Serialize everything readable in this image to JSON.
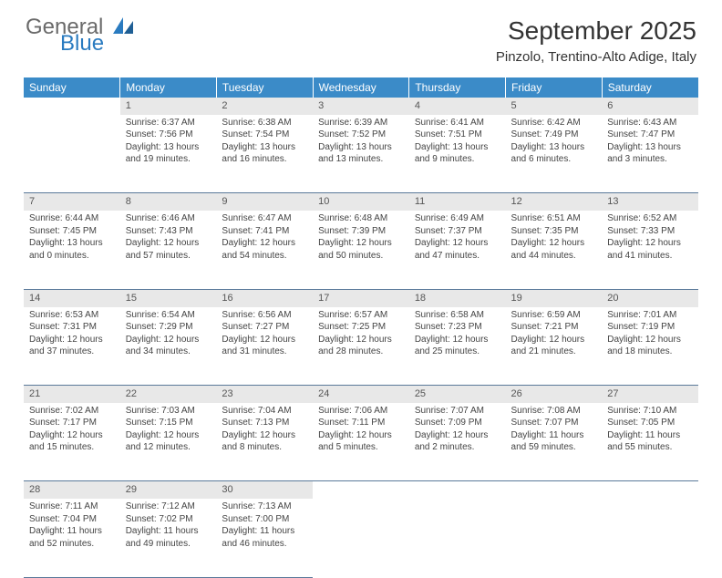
{
  "logo": {
    "line1": "General",
    "line2": "Blue"
  },
  "title": "September 2025",
  "location": "Pinzolo, Trentino-Alto Adige, Italy",
  "colors": {
    "header_bg": "#3b8bc8",
    "header_text": "#ffffff",
    "daynum_bg": "#e8e8e8",
    "daynum_text": "#555555",
    "cell_text": "#444444",
    "rule": "#5a7a9a",
    "logo_gray": "#6a6a6a",
    "logo_blue": "#2a7bc0"
  },
  "columns": [
    "Sunday",
    "Monday",
    "Tuesday",
    "Wednesday",
    "Thursday",
    "Friday",
    "Saturday"
  ],
  "weeks": [
    {
      "nums": [
        "",
        "1",
        "2",
        "3",
        "4",
        "5",
        "6"
      ],
      "cells": [
        null,
        {
          "sr": "Sunrise: 6:37 AM",
          "ss": "Sunset: 7:56 PM",
          "dl1": "Daylight: 13 hours",
          "dl2": "and 19 minutes."
        },
        {
          "sr": "Sunrise: 6:38 AM",
          "ss": "Sunset: 7:54 PM",
          "dl1": "Daylight: 13 hours",
          "dl2": "and 16 minutes."
        },
        {
          "sr": "Sunrise: 6:39 AM",
          "ss": "Sunset: 7:52 PM",
          "dl1": "Daylight: 13 hours",
          "dl2": "and 13 minutes."
        },
        {
          "sr": "Sunrise: 6:41 AM",
          "ss": "Sunset: 7:51 PM",
          "dl1": "Daylight: 13 hours",
          "dl2": "and 9 minutes."
        },
        {
          "sr": "Sunrise: 6:42 AM",
          "ss": "Sunset: 7:49 PM",
          "dl1": "Daylight: 13 hours",
          "dl2": "and 6 minutes."
        },
        {
          "sr": "Sunrise: 6:43 AM",
          "ss": "Sunset: 7:47 PM",
          "dl1": "Daylight: 13 hours",
          "dl2": "and 3 minutes."
        }
      ]
    },
    {
      "nums": [
        "7",
        "8",
        "9",
        "10",
        "11",
        "12",
        "13"
      ],
      "cells": [
        {
          "sr": "Sunrise: 6:44 AM",
          "ss": "Sunset: 7:45 PM",
          "dl1": "Daylight: 13 hours",
          "dl2": "and 0 minutes."
        },
        {
          "sr": "Sunrise: 6:46 AM",
          "ss": "Sunset: 7:43 PM",
          "dl1": "Daylight: 12 hours",
          "dl2": "and 57 minutes."
        },
        {
          "sr": "Sunrise: 6:47 AM",
          "ss": "Sunset: 7:41 PM",
          "dl1": "Daylight: 12 hours",
          "dl2": "and 54 minutes."
        },
        {
          "sr": "Sunrise: 6:48 AM",
          "ss": "Sunset: 7:39 PM",
          "dl1": "Daylight: 12 hours",
          "dl2": "and 50 minutes."
        },
        {
          "sr": "Sunrise: 6:49 AM",
          "ss": "Sunset: 7:37 PM",
          "dl1": "Daylight: 12 hours",
          "dl2": "and 47 minutes."
        },
        {
          "sr": "Sunrise: 6:51 AM",
          "ss": "Sunset: 7:35 PM",
          "dl1": "Daylight: 12 hours",
          "dl2": "and 44 minutes."
        },
        {
          "sr": "Sunrise: 6:52 AM",
          "ss": "Sunset: 7:33 PM",
          "dl1": "Daylight: 12 hours",
          "dl2": "and 41 minutes."
        }
      ]
    },
    {
      "nums": [
        "14",
        "15",
        "16",
        "17",
        "18",
        "19",
        "20"
      ],
      "cells": [
        {
          "sr": "Sunrise: 6:53 AM",
          "ss": "Sunset: 7:31 PM",
          "dl1": "Daylight: 12 hours",
          "dl2": "and 37 minutes."
        },
        {
          "sr": "Sunrise: 6:54 AM",
          "ss": "Sunset: 7:29 PM",
          "dl1": "Daylight: 12 hours",
          "dl2": "and 34 minutes."
        },
        {
          "sr": "Sunrise: 6:56 AM",
          "ss": "Sunset: 7:27 PM",
          "dl1": "Daylight: 12 hours",
          "dl2": "and 31 minutes."
        },
        {
          "sr": "Sunrise: 6:57 AM",
          "ss": "Sunset: 7:25 PM",
          "dl1": "Daylight: 12 hours",
          "dl2": "and 28 minutes."
        },
        {
          "sr": "Sunrise: 6:58 AM",
          "ss": "Sunset: 7:23 PM",
          "dl1": "Daylight: 12 hours",
          "dl2": "and 25 minutes."
        },
        {
          "sr": "Sunrise: 6:59 AM",
          "ss": "Sunset: 7:21 PM",
          "dl1": "Daylight: 12 hours",
          "dl2": "and 21 minutes."
        },
        {
          "sr": "Sunrise: 7:01 AM",
          "ss": "Sunset: 7:19 PM",
          "dl1": "Daylight: 12 hours",
          "dl2": "and 18 minutes."
        }
      ]
    },
    {
      "nums": [
        "21",
        "22",
        "23",
        "24",
        "25",
        "26",
        "27"
      ],
      "cells": [
        {
          "sr": "Sunrise: 7:02 AM",
          "ss": "Sunset: 7:17 PM",
          "dl1": "Daylight: 12 hours",
          "dl2": "and 15 minutes."
        },
        {
          "sr": "Sunrise: 7:03 AM",
          "ss": "Sunset: 7:15 PM",
          "dl1": "Daylight: 12 hours",
          "dl2": "and 12 minutes."
        },
        {
          "sr": "Sunrise: 7:04 AM",
          "ss": "Sunset: 7:13 PM",
          "dl1": "Daylight: 12 hours",
          "dl2": "and 8 minutes."
        },
        {
          "sr": "Sunrise: 7:06 AM",
          "ss": "Sunset: 7:11 PM",
          "dl1": "Daylight: 12 hours",
          "dl2": "and 5 minutes."
        },
        {
          "sr": "Sunrise: 7:07 AM",
          "ss": "Sunset: 7:09 PM",
          "dl1": "Daylight: 12 hours",
          "dl2": "and 2 minutes."
        },
        {
          "sr": "Sunrise: 7:08 AM",
          "ss": "Sunset: 7:07 PM",
          "dl1": "Daylight: 11 hours",
          "dl2": "and 59 minutes."
        },
        {
          "sr": "Sunrise: 7:10 AM",
          "ss": "Sunset: 7:05 PM",
          "dl1": "Daylight: 11 hours",
          "dl2": "and 55 minutes."
        }
      ]
    },
    {
      "nums": [
        "28",
        "29",
        "30",
        "",
        "",
        "",
        ""
      ],
      "cells": [
        {
          "sr": "Sunrise: 7:11 AM",
          "ss": "Sunset: 7:04 PM",
          "dl1": "Daylight: 11 hours",
          "dl2": "and 52 minutes."
        },
        {
          "sr": "Sunrise: 7:12 AM",
          "ss": "Sunset: 7:02 PM",
          "dl1": "Daylight: 11 hours",
          "dl2": "and 49 minutes."
        },
        {
          "sr": "Sunrise: 7:13 AM",
          "ss": "Sunset: 7:00 PM",
          "dl1": "Daylight: 11 hours",
          "dl2": "and 46 minutes."
        },
        null,
        null,
        null,
        null
      ]
    }
  ]
}
